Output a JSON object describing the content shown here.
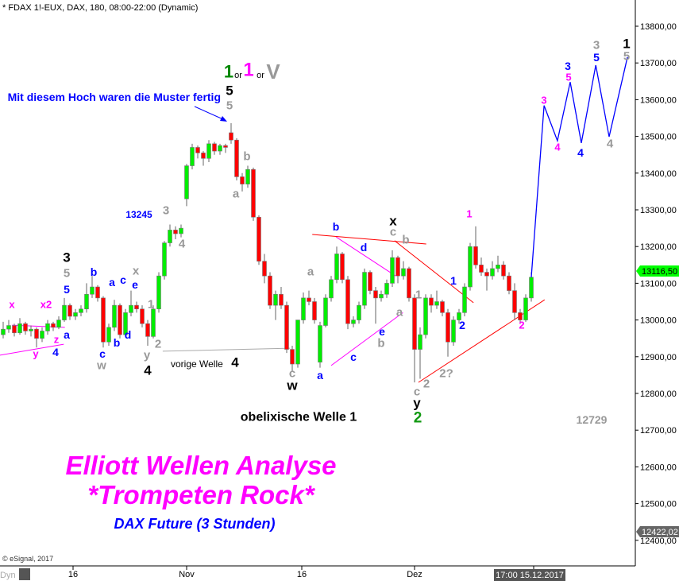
{
  "header": "* FDAX 1!-EUX, DAX, 180, 08:00-22:00 (Dynamic)",
  "copyright": "© eSignal, 2017",
  "dyn_label": "Dyn",
  "colors": {
    "up": "#00ee00",
    "down": "#ff0000",
    "projection": "#0000ff",
    "trend_red": "#ff0000",
    "trend_magenta": "#ff00ff",
    "grey_line": "#aaaaaa",
    "last_price_tag": "#00ff00",
    "low_tag": "#666666"
  },
  "texts": {
    "note": "Mit diesem Hoch waren die Muster fertig",
    "vorige_welle": "vorige Welle",
    "obelix": "obelixische Welle 1",
    "title1": "Elliott Wellen Analyse",
    "title2": "*Trompeten Rock*",
    "subtitle": "DAX Future (3 Stunden)",
    "level_13245": "13245",
    "level_12729": "12729",
    "or1": "or",
    "or2": "or",
    "alt1": "1",
    "alt2": "1",
    "alt3": "V"
  },
  "wave_labels": {
    "black": [
      "3",
      "x",
      "5",
      "4",
      "4",
      "w",
      "y",
      "1"
    ],
    "green": [
      "2"
    ],
    "grey": [
      "5",
      "5",
      "b",
      "a",
      "3",
      "4",
      "1",
      "x",
      "2",
      "y",
      "w",
      "a",
      "c",
      "b",
      "1",
      "a",
      "b",
      "c",
      "c",
      "2",
      "2?",
      "4",
      "3",
      "5"
    ],
    "blue": [
      "5",
      "b",
      "a",
      "c",
      "e",
      "a",
      "4",
      "c",
      "b",
      "d",
      "b",
      "d",
      "e",
      "c",
      "a",
      "1",
      "2",
      "3",
      "5",
      "4"
    ],
    "magenta": [
      "x",
      "x2",
      "z",
      "y",
      "1",
      "3",
      "4",
      "5",
      "2"
    ]
  },
  "chart_data": {
    "type": "candlestick",
    "title": "* FDAX 1!-EUX, DAX, 180, 08:00-22:00 (Dynamic)",
    "ylim": [
      12400,
      13800
    ],
    "y_ticks": [
      "13800,00",
      "13700,00",
      "13600,00",
      "13500,00",
      "13400,00",
      "13300,00",
      "13200,00",
      "13100,00",
      "13000,00",
      "12900,00",
      "12800,00",
      "12700,00",
      "12600,00",
      "12500,00",
      "12400,00"
    ],
    "x_ticks": [
      "16",
      "Nov",
      "16",
      "Dez"
    ],
    "cursor_time": "17:00 15.12.2017",
    "last_price": 13116.5,
    "last_price_label": "13116,50",
    "low_marker": 12422.02,
    "low_marker_label": "12422,02",
    "grid": false,
    "candles_ohlc": [
      [
        12960,
        12995,
        12950,
        12975
      ],
      [
        12975,
        13000,
        12965,
        12985
      ],
      [
        12985,
        12990,
        12955,
        12965
      ],
      [
        12965,
        13005,
        12960,
        12990
      ],
      [
        12990,
        12995,
        12960,
        12970
      ],
      [
        12970,
        12985,
        12955,
        12975
      ],
      [
        12975,
        12980,
        12925,
        12950
      ],
      [
        12950,
        12980,
        12940,
        12970
      ],
      [
        12970,
        13000,
        12960,
        12990
      ],
      [
        12990,
        12995,
        12970,
        12980
      ],
      [
        12980,
        13010,
        12975,
        13000
      ],
      [
        13000,
        13060,
        12995,
        13040
      ],
      [
        13040,
        13045,
        13000,
        13010
      ],
      [
        13010,
        13030,
        13000,
        13020
      ],
      [
        13020,
        13040,
        13010,
        13030
      ],
      [
        13030,
        13100,
        13020,
        13070
      ],
      [
        13070,
        13120,
        13060,
        13090
      ],
      [
        13090,
        13095,
        13050,
        13060
      ],
      [
        13060,
        13065,
        12925,
        12940
      ],
      [
        12940,
        12990,
        12930,
        12980
      ],
      [
        12980,
        13055,
        12970,
        13040
      ],
      [
        13040,
        13045,
        12950,
        12960
      ],
      [
        12960,
        13030,
        12955,
        13020
      ],
      [
        13020,
        13080,
        13010,
        13040
      ],
      [
        13040,
        13050,
        13020,
        13030
      ],
      [
        13030,
        13040,
        12980,
        12990
      ],
      [
        12990,
        13000,
        12930,
        12955
      ],
      [
        12955,
        13040,
        12950,
        13030
      ],
      [
        13030,
        13130,
        13020,
        13120
      ],
      [
        13120,
        13215,
        13110,
        13210
      ],
      [
        13210,
        13260,
        13200,
        13245
      ],
      [
        13245,
        13255,
        13220,
        13235
      ],
      [
        13235,
        13260,
        13225,
        13250
      ],
      [
        13330,
        13425,
        13310,
        13420
      ],
      [
        13420,
        13480,
        13410,
        13470
      ],
      [
        13470,
        13475,
        13440,
        13455
      ],
      [
        13455,
        13460,
        13420,
        13440
      ],
      [
        13440,
        13490,
        13430,
        13480
      ],
      [
        13480,
        13485,
        13450,
        13460
      ],
      [
        13460,
        13480,
        13450,
        13475
      ],
      [
        13475,
        13480,
        13455,
        13470
      ],
      [
        13510,
        13536,
        13480,
        13490
      ],
      [
        13490,
        13495,
        13380,
        13390
      ],
      [
        13390,
        13400,
        13350,
        13370
      ],
      [
        13370,
        13420,
        13360,
        13410
      ],
      [
        13410,
        13415,
        13270,
        13280
      ],
      [
        13280,
        13285,
        13150,
        13160
      ],
      [
        13160,
        13180,
        13100,
        13120
      ],
      [
        13120,
        13130,
        13030,
        13040
      ],
      [
        13040,
        13080,
        13000,
        13070
      ],
      [
        13070,
        13090,
        13030,
        13040
      ],
      [
        13040,
        13050,
        12910,
        12920
      ],
      [
        12920,
        12930,
        12860,
        12880
      ],
      [
        12880,
        13000,
        12870,
        13000
      ],
      [
        13000,
        13075,
        12990,
        13060
      ],
      [
        13060,
        13080,
        13040,
        13050
      ],
      [
        13050,
        13060,
        12990,
        13000
      ],
      [
        12885,
        12995,
        12870,
        12985
      ],
      [
        12985,
        13070,
        12980,
        13060
      ],
      [
        13060,
        13120,
        13050,
        13110
      ],
      [
        13110,
        13200,
        13100,
        13180
      ],
      [
        13180,
        13185,
        13100,
        13110
      ],
      [
        13110,
        13120,
        12975,
        12990
      ],
      [
        12990,
        13010,
        12980,
        13000
      ],
      [
        13000,
        13050,
        12990,
        13040
      ],
      [
        13040,
        13140,
        13030,
        13130
      ],
      [
        13130,
        13135,
        13070,
        13080
      ],
      [
        13080,
        13090,
        12990,
        13060
      ],
      [
        13060,
        13080,
        13050,
        13070
      ],
      [
        13070,
        13110,
        13060,
        13100
      ],
      [
        13100,
        13190,
        13090,
        13170
      ],
      [
        13170,
        13175,
        13100,
        13120
      ],
      [
        13120,
        13160,
        13110,
        13140
      ],
      [
        13140,
        13145,
        13050,
        13060
      ],
      [
        13060,
        13070,
        12830,
        12920
      ],
      [
        12920,
        12980,
        12840,
        12960
      ],
      [
        12960,
        13070,
        12950,
        13060
      ],
      [
        13060,
        13070,
        13020,
        13040
      ],
      [
        13040,
        13080,
        13030,
        13050
      ],
      [
        13050,
        13055,
        13010,
        13020
      ],
      [
        13020,
        13030,
        12900,
        12940
      ],
      [
        12940,
        13010,
        12930,
        13000
      ],
      [
        13000,
        13030,
        12990,
        13020
      ],
      [
        13020,
        13100,
        13010,
        13090
      ],
      [
        13090,
        13210,
        13080,
        13200
      ],
      [
        13200,
        13255,
        13140,
        13150
      ],
      [
        13150,
        13170,
        13120,
        13130
      ],
      [
        13130,
        13140,
        13080,
        13120
      ],
      [
        13120,
        13160,
        13110,
        13140
      ],
      [
        13140,
        13175,
        13130,
        13150
      ],
      [
        13150,
        13160,
        13110,
        13120
      ],
      [
        13120,
        13130,
        13070,
        13080
      ],
      [
        13080,
        13100,
        13000,
        13020
      ],
      [
        13020,
        13030,
        12990,
        13000
      ],
      [
        13000,
        13070,
        12995,
        13060
      ],
      [
        13060,
        13130,
        13050,
        13116.5
      ]
    ],
    "projection_path_bar_price": [
      [
        95,
        13116.5
      ],
      [
        97.3,
        13584
      ],
      [
        99.7,
        13488
      ],
      [
        102,
        13648
      ],
      [
        104,
        13482
      ],
      [
        106.6,
        13694
      ],
      [
        109,
        13499
      ],
      [
        112.3,
        13716
      ]
    ],
    "trend_lines_bar_price": [
      {
        "color": "red",
        "from": [
          55.6,
          13233
        ],
        "to": [
          76.1,
          13207
        ]
      },
      {
        "color": "red",
        "from": [
          70.4,
          13216
        ],
        "to": [
          84.6,
          13047
        ]
      },
      {
        "color": "red",
        "from": [
          74.7,
          12830
        ],
        "to": [
          97.4,
          13055
        ]
      },
      {
        "color": "magenta",
        "from": [
          59.9,
          13226
        ],
        "to": [
          70.6,
          13120
        ]
      },
      {
        "color": "magenta",
        "from": [
          59,
          12876
        ],
        "to": [
          71.9,
          13020
        ]
      },
      {
        "color": "magenta",
        "from": [
          -0.6,
          12904
        ],
        "to": [
          10.9,
          12934
        ]
      },
      {
        "color": "magenta",
        "from": [
          1.6,
          12986
        ],
        "to": [
          11.1,
          12980
        ]
      },
      {
        "color": "grey",
        "from": [
          28.7,
          12915
        ],
        "to": [
          51.6,
          12923
        ]
      }
    ]
  }
}
